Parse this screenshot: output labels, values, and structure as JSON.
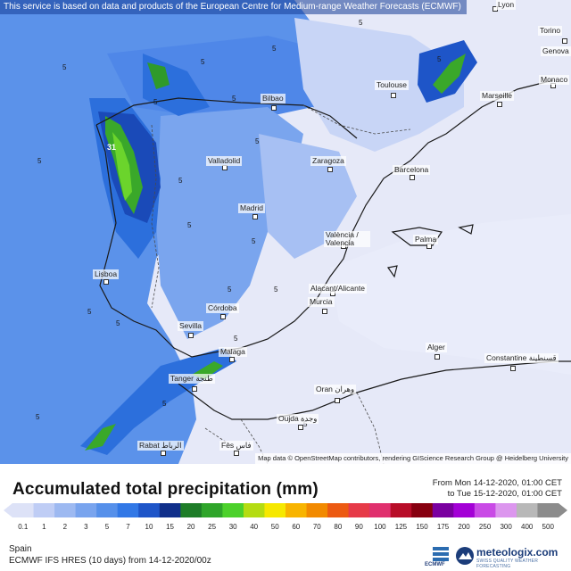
{
  "header": {
    "notice": "This service is based on data and products of the European Centre for Medium-range Weather Forecasts (ECMWF)"
  },
  "map": {
    "attribution": "Map data © OpenStreetMap contributors, rendering GIScience Research Group @ Heidelberg University",
    "cities": [
      {
        "name": "Lyon"
      },
      {
        "name": "Torino"
      },
      {
        "name": "Genova"
      },
      {
        "name": "Monaco"
      },
      {
        "name": "Bilbao"
      },
      {
        "name": "Toulouse"
      },
      {
        "name": "Marseille"
      },
      {
        "name": "Valladolid"
      },
      {
        "name": "Zaragoza"
      },
      {
        "name": "Barcelona"
      },
      {
        "name": "Madrid"
      },
      {
        "name": "València / Valencia"
      },
      {
        "name": "Palma"
      },
      {
        "name": "Lisboa"
      },
      {
        "name": "Alacant/Alicante"
      },
      {
        "name": "Murcia"
      },
      {
        "name": "Córdoba"
      },
      {
        "name": "Sevilla"
      },
      {
        "name": "Malaga"
      },
      {
        "name": "Alger"
      },
      {
        "name": "Tanger طنجة"
      },
      {
        "name": "Constantine قسنطينة"
      },
      {
        "name": "Oran وهران"
      },
      {
        "name": "Oujda وجدة"
      },
      {
        "name": "Rabat الرباط"
      },
      {
        "name": "Fès فاس"
      }
    ],
    "contour_labels": [
      "5",
      "5",
      "5",
      "5",
      "5",
      "5",
      "5",
      "5",
      "5",
      "5",
      "5",
      "5",
      "5",
      "5",
      "5",
      "5",
      "5",
      "5",
      "5",
      "5",
      "31"
    ]
  },
  "footer": {
    "title": "Accumulated total precipitation (mm)",
    "valid_from": "From Mon 14-12-2020, 01:00 CET",
    "valid_to": "to Tue 15-12-2020, 01:00 CET",
    "region": "Spain",
    "model": "ECMWF IFS HRES (10 days) from 14-12-2020/00z",
    "ecmwf_label": "ECMWF",
    "brand": "meteologix.com",
    "brand_tagline": "SWISS QUALITY WEATHER FORECASTING"
  },
  "legend": {
    "labels": [
      "0.1",
      "1",
      "2",
      "3",
      "5",
      "7",
      "10",
      "15",
      "20",
      "25",
      "30",
      "40",
      "50",
      "60",
      "70",
      "80",
      "90",
      "100",
      "125",
      "150",
      "175",
      "200",
      "250",
      "300",
      "400",
      "500"
    ],
    "colors": [
      "#dde2f7",
      "#bfcdf5",
      "#9db9f1",
      "#79a4ee",
      "#5690ea",
      "#3278e6",
      "#1e55c8",
      "#0f2f8a",
      "#1e7d28",
      "#2fa52a",
      "#4cd12b",
      "#b4dc12",
      "#f6e800",
      "#f8b400",
      "#f28a00",
      "#ec5a12",
      "#e63a48",
      "#e0306e",
      "#b80d28",
      "#870010",
      "#7a00a0",
      "#a300d6",
      "#c94ae6",
      "#dc96ee",
      "#b8b8b8",
      "#8c8c8c"
    ]
  }
}
